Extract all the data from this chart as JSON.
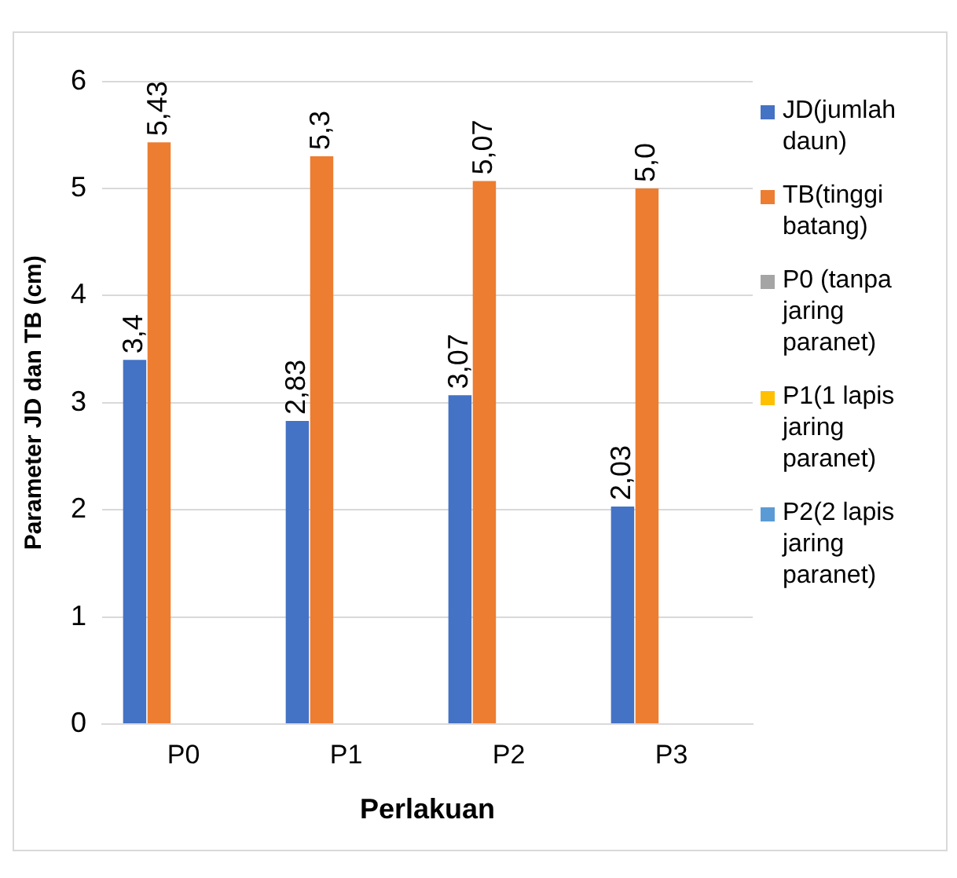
{
  "chart_data": {
    "type": "bar",
    "xlabel": "Perlakuan",
    "ylabel": "Parameter JD dan TB (cm)",
    "categories": [
      "P0",
      "P1",
      "P2",
      "P3"
    ],
    "series": [
      {
        "name": "JD(jumlah daun)",
        "color": "#4472c4",
        "values": [
          3.4,
          2.83,
          3.07,
          2.03
        ],
        "value_labels": [
          "3,4",
          "2,83",
          "3,07",
          "2,03"
        ]
      },
      {
        "name": "TB(tinggi batang)",
        "color": "#ed7d31",
        "values": [
          5.43,
          5.3,
          5.07,
          5.0
        ],
        "value_labels": [
          "5,43",
          "5,3",
          "5,07",
          "5,0"
        ]
      },
      {
        "name": "P0 (tanpa jaring paranet)",
        "color": "#a5a5a5",
        "values": [
          null,
          null,
          null,
          null
        ]
      },
      {
        "name": "P1(1 lapis jaring paranet)",
        "color": "#ffc000",
        "values": [
          null,
          null,
          null,
          null
        ]
      },
      {
        "name": "P2(2 lapis jaring paranet)",
        "color": "#5b9bd5",
        "values": [
          null,
          null,
          null,
          null
        ]
      }
    ],
    "ylim": [
      0,
      6
    ],
    "yticks": [
      0,
      1,
      2,
      3,
      4,
      5,
      6
    ],
    "grid": "y",
    "legend": "right"
  }
}
